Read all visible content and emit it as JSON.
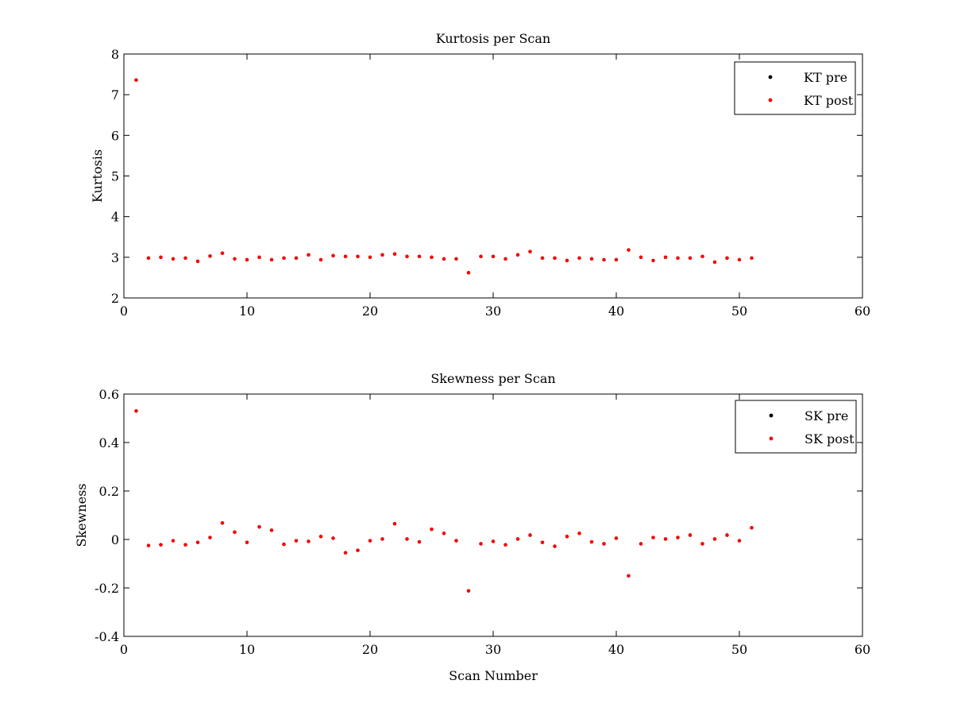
{
  "chart_data": [
    {
      "type": "scatter",
      "title": "Kurtosis per Scan",
      "xlabel": "",
      "ylabel": "Kurtosis",
      "xlim": [
        0,
        60
      ],
      "ylim": [
        2,
        8
      ],
      "xticks": [
        "0",
        "10",
        "20",
        "30",
        "40",
        "50",
        "60"
      ],
      "yticks": [
        "2",
        "3",
        "4",
        "5",
        "6",
        "7",
        "8"
      ],
      "grid": false,
      "legend_position": "top-right",
      "x": [
        1,
        2,
        3,
        4,
        5,
        6,
        7,
        8,
        9,
        10,
        11,
        12,
        13,
        14,
        15,
        16,
        17,
        18,
        19,
        20,
        21,
        22,
        23,
        24,
        25,
        26,
        27,
        28,
        29,
        30,
        31,
        32,
        33,
        34,
        35,
        36,
        37,
        38,
        39,
        40,
        41,
        42,
        43,
        44,
        45,
        46,
        47,
        48,
        49,
        50,
        51
      ],
      "series": [
        {
          "name": "KT pre",
          "color": "#000000",
          "values": [
            7.36,
            2.98,
            3.0,
            2.96,
            2.98,
            2.9,
            3.03,
            3.1,
            2.96,
            2.94,
            3.0,
            2.94,
            2.98,
            2.98,
            3.06,
            2.94,
            3.04,
            3.02,
            3.02,
            3.0,
            3.06,
            3.08,
            3.02,
            3.02,
            3.0,
            2.96,
            2.96,
            2.62,
            3.02,
            3.02,
            2.96,
            3.06,
            3.14,
            2.98,
            2.98,
            2.92,
            2.98,
            2.96,
            2.94,
            2.94,
            3.18,
            3.0,
            2.92,
            3.0,
            2.98,
            2.98,
            3.02,
            2.88,
            2.98,
            2.94,
            2.98
          ]
        },
        {
          "name": "KT post",
          "color": "#ff0000",
          "values": [
            7.36,
            2.98,
            3.0,
            2.96,
            2.98,
            2.9,
            3.03,
            3.1,
            2.96,
            2.94,
            3.0,
            2.94,
            2.98,
            2.98,
            3.06,
            2.94,
            3.04,
            3.02,
            3.02,
            3.0,
            3.06,
            3.08,
            3.02,
            3.02,
            3.0,
            2.96,
            2.96,
            2.62,
            3.02,
            3.02,
            2.96,
            3.06,
            3.14,
            2.98,
            2.98,
            2.92,
            2.98,
            2.96,
            2.94,
            2.94,
            3.18,
            3.0,
            2.92,
            3.0,
            2.98,
            2.98,
            3.02,
            2.88,
            2.98,
            2.94,
            2.98
          ]
        }
      ]
    },
    {
      "type": "scatter",
      "title": "Skewness per Scan",
      "xlabel": "Scan Number",
      "ylabel": "Skewness",
      "xlim": [
        0,
        60
      ],
      "ylim": [
        -0.4,
        0.6
      ],
      "xticks": [
        "0",
        "10",
        "20",
        "30",
        "40",
        "50",
        "60"
      ],
      "yticks": [
        "-0.4",
        "-0.2",
        "0",
        "0.2",
        "0.4",
        "0.6"
      ],
      "grid": false,
      "legend_position": "top-right",
      "x": [
        1,
        2,
        3,
        4,
        5,
        6,
        7,
        8,
        9,
        10,
        11,
        12,
        13,
        14,
        15,
        16,
        17,
        18,
        19,
        20,
        21,
        22,
        23,
        24,
        25,
        26,
        27,
        28,
        29,
        30,
        31,
        32,
        33,
        34,
        35,
        36,
        37,
        38,
        39,
        40,
        41,
        42,
        43,
        44,
        45,
        46,
        47,
        48,
        49,
        50,
        51
      ],
      "series": [
        {
          "name": "SK pre",
          "color": "#000000",
          "values": [
            0.53,
            -0.025,
            -0.022,
            -0.005,
            -0.022,
            -0.012,
            0.008,
            0.068,
            0.03,
            -0.012,
            0.052,
            0.038,
            -0.02,
            -0.005,
            -0.008,
            0.012,
            0.005,
            -0.055,
            -0.045,
            -0.005,
            0.002,
            0.065,
            0.002,
            -0.01,
            0.042,
            0.025,
            -0.005,
            -0.212,
            -0.018,
            -0.008,
            -0.022,
            0.002,
            0.018,
            -0.012,
            -0.028,
            0.012,
            0.025,
            -0.01,
            -0.018,
            0.005,
            -0.15,
            -0.018,
            0.008,
            0.002,
            0.008,
            0.018,
            -0.018,
            0.002,
            0.018,
            -0.005,
            0.048
          ]
        },
        {
          "name": "SK post",
          "color": "#ff0000",
          "values": [
            0.53,
            -0.025,
            -0.022,
            -0.005,
            -0.022,
            -0.012,
            0.008,
            0.068,
            0.03,
            -0.012,
            0.052,
            0.038,
            -0.02,
            -0.005,
            -0.008,
            0.012,
            0.005,
            -0.055,
            -0.045,
            -0.005,
            0.002,
            0.065,
            0.002,
            -0.01,
            0.042,
            0.025,
            -0.005,
            -0.212,
            -0.018,
            -0.008,
            -0.022,
            0.002,
            0.018,
            -0.012,
            -0.028,
            0.012,
            0.025,
            -0.01,
            -0.018,
            0.005,
            -0.15,
            -0.018,
            0.008,
            0.002,
            0.008,
            0.018,
            -0.018,
            0.002,
            0.018,
            -0.005,
            0.048
          ]
        }
      ]
    }
  ]
}
